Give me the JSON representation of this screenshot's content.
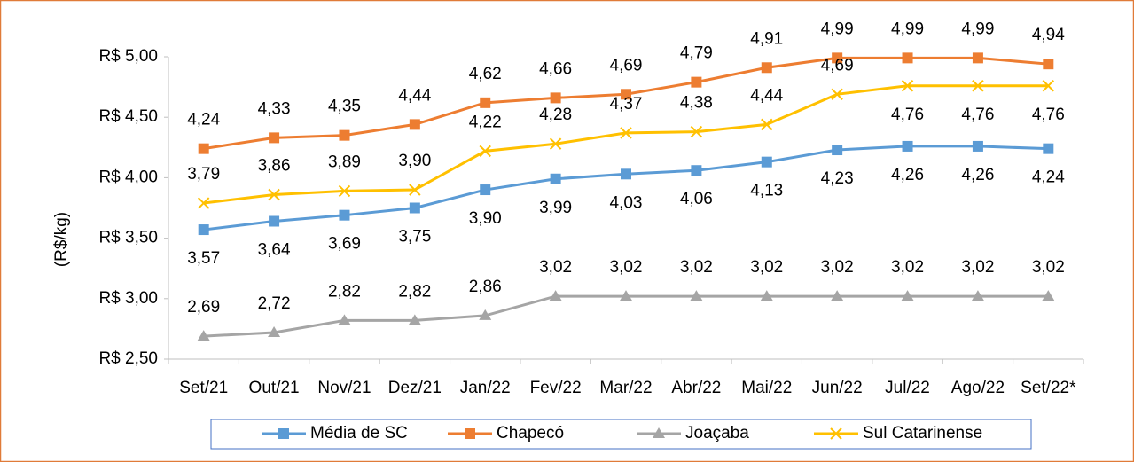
{
  "chart_data": {
    "type": "line",
    "y_label": "(R$/kg)",
    "categories": [
      "Set/21",
      "Out/21",
      "Nov/21",
      "Dez/21",
      "Jan/22",
      "Fev/22",
      "Mar/22",
      "Abr/22",
      "Mai/22",
      "Jun/22",
      "Jul/22",
      "Ago/22",
      "Set/22*"
    ],
    "ylim": [
      2.5,
      5.0
    ],
    "yticks": [
      {
        "value": 2.5,
        "label": "R$ 2,50"
      },
      {
        "value": 3.0,
        "label": "R$ 3,00"
      },
      {
        "value": 3.5,
        "label": "R$ 3,50"
      },
      {
        "value": 4.0,
        "label": "R$ 4,00"
      },
      {
        "value": 4.5,
        "label": "R$ 4,50"
      },
      {
        "value": 5.0,
        "label": "R$ 5,00"
      }
    ],
    "legend": "bottom",
    "series": [
      {
        "name": "Média de SC",
        "color": "#5b9bd5",
        "marker": "square",
        "values": [
          3.57,
          3.64,
          3.69,
          3.75,
          3.9,
          3.99,
          4.03,
          4.06,
          4.13,
          4.23,
          4.26,
          4.26,
          4.24
        ],
        "value_labels": [
          "3,57",
          "3,64",
          "3,69",
          "3,75",
          "3,90",
          "3,99",
          "4,03",
          "4,06",
          "4,13",
          "4,23",
          "4,26",
          "4,26",
          "4,24"
        ]
      },
      {
        "name": "Chapecó",
        "color": "#ed7d31",
        "marker": "square",
        "values": [
          4.24,
          4.33,
          4.35,
          4.44,
          4.62,
          4.66,
          4.69,
          4.79,
          4.91,
          4.99,
          4.99,
          4.99,
          4.94
        ],
        "value_labels": [
          "4,24",
          "4,33",
          "4,35",
          "4,44",
          "4,62",
          "4,66",
          "4,69",
          "4,79",
          "4,91",
          "4,99",
          "4,99",
          "4,99",
          "4,94"
        ]
      },
      {
        "name": "Joaçaba",
        "color": "#a5a5a5",
        "marker": "triangle",
        "values": [
          2.69,
          2.72,
          2.82,
          2.82,
          2.86,
          3.02,
          3.02,
          3.02,
          3.02,
          3.02,
          3.02,
          3.02,
          3.02
        ],
        "value_labels": [
          "2,69",
          "2,72",
          "2,82",
          "2,82",
          "2,86",
          "3,02",
          "3,02",
          "3,02",
          "3,02",
          "3,02",
          "3,02",
          "3,02",
          "3,02"
        ]
      },
      {
        "name": "Sul Catarinense",
        "color": "#ffc000",
        "marker": "x",
        "values": [
          3.79,
          3.86,
          3.89,
          3.9,
          4.22,
          4.28,
          4.37,
          4.38,
          4.44,
          4.69,
          4.76,
          4.76,
          4.76
        ],
        "value_labels": [
          "3,79",
          "3,86",
          "3,89",
          "3,90",
          "4,22",
          "4,28",
          "4,37",
          "4,38",
          "4,44",
          "4,69",
          "4,76",
          "4,76",
          "4,76"
        ]
      }
    ]
  }
}
